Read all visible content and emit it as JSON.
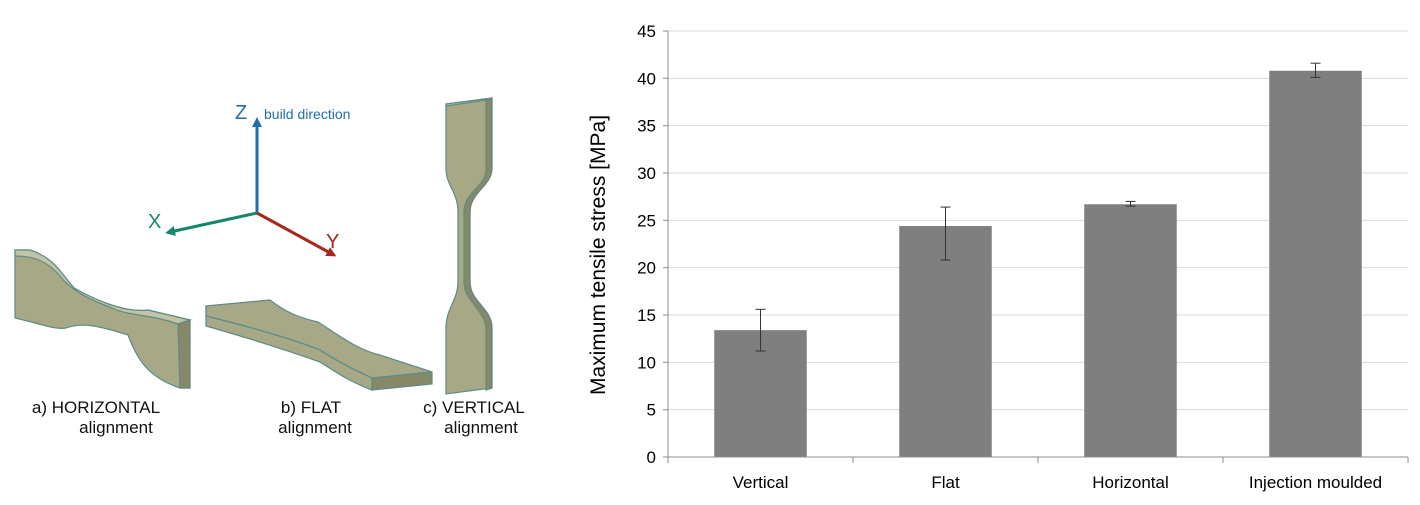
{
  "illustration": {
    "axes": {
      "z_label": "Z",
      "z_note": "build direction",
      "x_label": "X",
      "y_label": "Y",
      "z_color": "#1f6fb0",
      "x_color": "#14876a",
      "y_color": "#a5281f"
    },
    "specimen_color": "#a6a886",
    "specimens": [
      {
        "caption_line1": "a) HORIZONTAL",
        "caption_line2": "alignment"
      },
      {
        "caption_line1": "b) FLAT",
        "caption_line2": "alignment"
      },
      {
        "caption_line1": "c) VERTICAL",
        "caption_line2": "alignment"
      }
    ]
  },
  "chart_data": {
    "type": "bar",
    "categories": [
      "Vertical",
      "Flat",
      "Horizontal",
      "Injection moulded"
    ],
    "values": [
      13.4,
      24.4,
      26.7,
      40.8
    ],
    "error_low": [
      11.2,
      20.8,
      26.5,
      40.1
    ],
    "error_high": [
      15.6,
      26.4,
      27.0,
      41.6
    ],
    "ylabel": "Maximum tensile stress [MPa]",
    "xlabel": "",
    "ylim": [
      0,
      45
    ],
    "yticks": [
      0,
      5,
      10,
      15,
      20,
      25,
      30,
      35,
      40,
      45
    ],
    "grid": true,
    "bar_color": "#7f7f7f"
  }
}
